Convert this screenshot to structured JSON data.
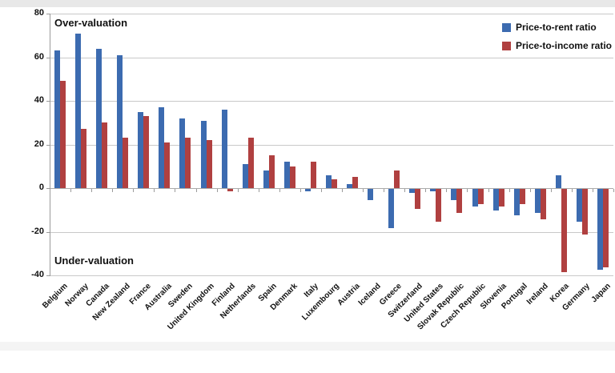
{
  "annotations": {
    "over": "Over-valuation",
    "under": "Under-valuation"
  },
  "legend": [
    {
      "label": "Price-to-rent ratio",
      "color": "#3c6bb0"
    },
    {
      "label": "Price-to-income ratio",
      "color": "#b04040"
    }
  ],
  "colors": {
    "price_to_rent": "#3c6bb0",
    "price_to_income": "#b04040",
    "gridline": "#c9c9c9",
    "axis": "#9a9a9a"
  },
  "chart_data": {
    "type": "bar",
    "title": "",
    "xlabel": "",
    "ylabel": "",
    "ylim": [
      -40,
      80
    ],
    "yticks": [
      80,
      60,
      40,
      20,
      0,
      -20,
      -40
    ],
    "grid": true,
    "legend_position": "top-right",
    "categories": [
      "Belgium",
      "Norway",
      "Canada",
      "New Zealand",
      "France",
      "Australia",
      "Sweden",
      "United Kingdom",
      "Finland",
      "Netherlands",
      "Spain",
      "Denmark",
      "Italy",
      "Luxembourg",
      "Austria",
      "Iceland",
      "Greece",
      "Switzerland",
      "United States",
      "Slovak Republic",
      "Czech Republic",
      "Slovenia",
      "Portugal",
      "Ireland",
      "Korea",
      "Germany",
      "Japan"
    ],
    "series": [
      {
        "name": "Price-to-rent ratio",
        "color": "#3c6bb0",
        "values": [
          63,
          71,
          64,
          61,
          35,
          37,
          32,
          31,
          36,
          11,
          8,
          12,
          -1,
          6,
          2,
          -5,
          -18,
          -2,
          -1,
          -5,
          -8,
          -10,
          -12,
          -11,
          6,
          -15,
          -37
        ]
      },
      {
        "name": "Price-to-income ratio",
        "color": "#b04040",
        "values": [
          49,
          27,
          30,
          23,
          33,
          21,
          23,
          22,
          -1,
          23,
          15,
          10,
          12,
          4,
          5,
          0,
          8,
          -9,
          -15,
          -11,
          -7,
          -8,
          -7,
          -14,
          -38,
          -21,
          -36
        ]
      }
    ],
    "annotations": [
      "Over-valuation",
      "Under-valuation"
    ]
  }
}
